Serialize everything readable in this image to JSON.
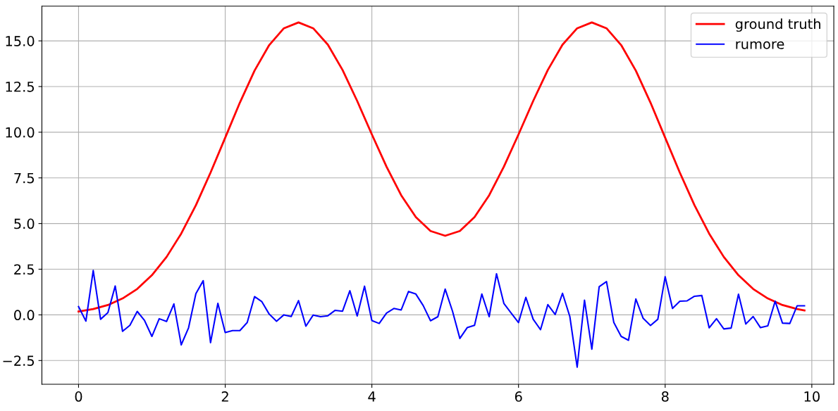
{
  "chart_data": {
    "type": "line",
    "legend": "top right",
    "grid": true,
    "xlim": [
      -0.5,
      10.3
    ],
    "ylim": [
      -3.8,
      16.9
    ],
    "xticks": [
      0,
      2,
      4,
      6,
      8,
      10
    ],
    "yticks": [
      {
        "value": -2.5,
        "label": "−2.5"
      },
      {
        "value": 0,
        "label": "0.0"
      },
      {
        "value": 2.5,
        "label": "2.5"
      },
      {
        "value": 5,
        "label": "5.0"
      },
      {
        "value": 7.5,
        "label": "7.5"
      },
      {
        "value": 10,
        "label": "10.0"
      },
      {
        "value": 12.5,
        "label": "12.5"
      },
      {
        "value": 15,
        "label": "15.0"
      }
    ],
    "series": [
      {
        "name": "ground truth",
        "color": "#ff0000",
        "x": [
          0,
          0.2,
          0.4,
          0.6,
          0.8,
          1.0,
          1.2,
          1.4,
          1.6,
          1.8,
          2.0,
          2.2,
          2.4,
          2.6,
          2.8,
          3.0,
          3.2,
          3.4,
          3.6,
          3.8,
          4.0,
          4.2,
          4.4,
          4.6,
          4.8,
          5.0,
          5.2,
          5.4,
          5.6,
          5.8,
          6.0,
          6.2,
          6.4,
          6.6,
          6.8,
          7.0,
          7.2,
          7.4,
          7.6,
          7.8,
          8.0,
          8.2,
          8.4,
          8.6,
          8.8,
          9.0,
          9.2,
          9.4,
          9.6,
          9.8,
          9.9
        ],
        "values": [
          0.18,
          0.32,
          0.54,
          0.9,
          1.42,
          2.17,
          3.17,
          4.45,
          6.0,
          7.79,
          9.7,
          11.62,
          13.37,
          14.77,
          15.69,
          16.01,
          15.69,
          14.79,
          13.41,
          11.71,
          9.88,
          8.11,
          6.55,
          5.35,
          4.59,
          4.33,
          4.59,
          5.35,
          6.55,
          8.11,
          9.88,
          11.71,
          13.41,
          14.79,
          15.69,
          16.01,
          15.69,
          14.77,
          13.37,
          11.62,
          9.7,
          7.79,
          6.0,
          4.45,
          3.17,
          2.17,
          1.42,
          0.9,
          0.54,
          0.32,
          0.24
        ]
      },
      {
        "name": "rumore",
        "color": "#0000ff",
        "x": [
          0,
          0.1,
          0.2,
          0.3,
          0.4,
          0.5,
          0.6,
          0.7,
          0.8,
          0.9,
          1.0,
          1.1,
          1.2,
          1.3,
          1.4,
          1.5,
          1.6,
          1.7,
          1.8,
          1.9,
          2.0,
          2.1,
          2.2,
          2.3,
          2.4,
          2.5,
          2.6,
          2.7,
          2.8,
          2.9,
          3.0,
          3.1,
          3.2,
          3.3,
          3.4,
          3.5,
          3.6,
          3.7,
          3.8,
          3.9,
          4.0,
          4.1,
          4.2,
          4.3,
          4.4,
          4.5,
          4.6,
          4.7,
          4.8,
          4.9,
          5.0,
          5.1,
          5.2,
          5.3,
          5.4,
          5.5,
          5.6,
          5.7,
          5.8,
          5.9,
          6.0,
          6.1,
          6.2,
          6.3,
          6.4,
          6.5,
          6.6,
          6.7,
          6.8,
          6.9,
          7.0,
          7.1,
          7.2,
          7.3,
          7.4,
          7.5,
          7.6,
          7.7,
          7.8,
          7.9,
          8.0,
          8.1,
          8.2,
          8.3,
          8.4,
          8.5,
          8.6,
          8.7,
          8.8,
          8.9,
          9.0,
          9.1,
          9.2,
          9.3,
          9.4,
          9.5,
          9.6,
          9.7,
          9.8,
          9.9
        ],
        "values": [
          0.45,
          -0.34,
          2.43,
          -0.24,
          0.12,
          1.58,
          -0.9,
          -0.57,
          0.19,
          -0.31,
          -1.18,
          -0.21,
          -0.36,
          0.6,
          -1.64,
          -0.71,
          1.16,
          1.87,
          -1.52,
          0.63,
          -0.97,
          -0.86,
          -0.86,
          -0.42,
          1.0,
          0.72,
          0.04,
          -0.35,
          0.0,
          -0.09,
          0.78,
          -0.62,
          -0.01,
          -0.1,
          -0.05,
          0.25,
          0.2,
          1.32,
          -0.06,
          1.57,
          -0.31,
          -0.47,
          0.1,
          0.35,
          0.27,
          1.28,
          1.14,
          0.51,
          -0.32,
          -0.1,
          1.41,
          0.2,
          -1.29,
          -0.7,
          -0.57,
          1.14,
          -0.1,
          2.25,
          0.63,
          0.1,
          -0.42,
          0.96,
          -0.24,
          -0.81,
          0.56,
          0.02,
          1.18,
          -0.09,
          -2.86,
          0.8,
          -1.88,
          1.54,
          1.82,
          -0.42,
          -1.18,
          -1.39,
          0.87,
          -0.19,
          -0.58,
          -0.24,
          2.09,
          0.35,
          0.75,
          0.77,
          1.02,
          1.06,
          -0.71,
          -0.21,
          -0.77,
          -0.72,
          1.13,
          -0.5,
          -0.09,
          -0.7,
          -0.6,
          0.75,
          -0.45,
          -0.47,
          0.5,
          0.5
        ]
      }
    ]
  }
}
